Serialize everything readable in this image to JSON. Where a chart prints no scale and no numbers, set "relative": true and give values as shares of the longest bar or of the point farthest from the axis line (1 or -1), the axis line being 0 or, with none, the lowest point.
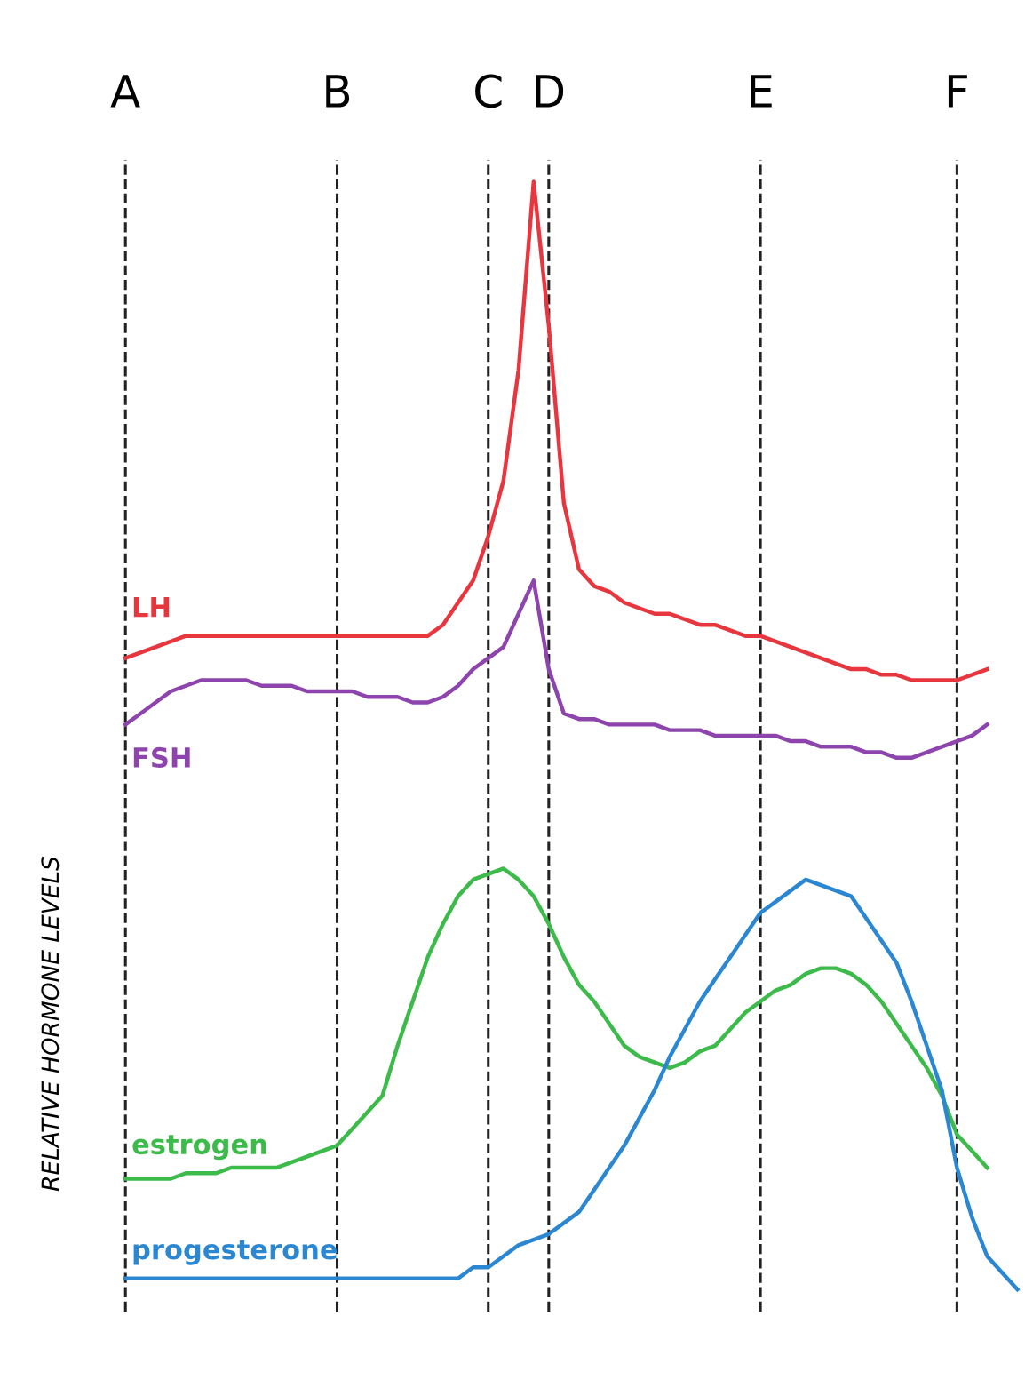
{
  "chart_data": {
    "type": "line",
    "relative": true,
    "ylabel": "RELATIVE HORMONE LEVELS",
    "tick_labels": "x",
    "grid": "x",
    "legend": false,
    "line_style": "solid",
    "marker": "none",
    "categories": [
      "A",
      null,
      null,
      null,
      null,
      null,
      null,
      null,
      null,
      null,
      null,
      null,
      null,
      null,
      "B",
      null,
      null,
      null,
      null,
      null,
      null,
      null,
      null,
      null,
      "C",
      null,
      null,
      null,
      "D",
      null,
      null,
      null,
      null,
      null,
      null,
      null,
      null,
      null,
      null,
      null,
      null,
      null,
      "E",
      null,
      null,
      null,
      null,
      null,
      null,
      null,
      null,
      null,
      null,
      null,
      null,
      "F",
      null,
      null,
      null,
      null
    ],
    "series": [
      {
        "name": "LH",
        "color": "#e8363f",
        "values": [
          0.57,
          0.575,
          0.58,
          0.585,
          0.59,
          0.59,
          0.59,
          0.59,
          0.59,
          0.59,
          0.59,
          0.59,
          0.59,
          0.59,
          0.59,
          0.59,
          0.59,
          0.59,
          0.59,
          0.59,
          0.59,
          0.6,
          0.62,
          0.64,
          0.68,
          0.73,
          0.83,
          1.0,
          0.87,
          0.71,
          0.65,
          0.635,
          0.63,
          0.62,
          0.615,
          0.61,
          0.61,
          0.605,
          0.6,
          0.6,
          0.595,
          0.59,
          0.59,
          0.585,
          0.58,
          0.575,
          0.57,
          0.565,
          0.56,
          0.56,
          0.555,
          0.555,
          0.55,
          0.55,
          0.55,
          0.55,
          0.555,
          0.56,
          null,
          null
        ]
      },
      {
        "name": "FSH",
        "color": "#8e44ad",
        "values": [
          0.51,
          0.52,
          0.53,
          0.54,
          0.545,
          0.55,
          0.55,
          0.55,
          0.55,
          0.545,
          0.545,
          0.545,
          0.54,
          0.54,
          0.54,
          0.54,
          0.535,
          0.535,
          0.535,
          0.53,
          0.53,
          0.535,
          0.545,
          0.56,
          0.57,
          0.58,
          0.61,
          0.64,
          0.56,
          0.52,
          0.515,
          0.515,
          0.51,
          0.51,
          0.51,
          0.51,
          0.505,
          0.505,
          0.505,
          0.5,
          0.5,
          0.5,
          0.5,
          0.5,
          0.495,
          0.495,
          0.49,
          0.49,
          0.49,
          0.485,
          0.485,
          0.48,
          0.48,
          0.485,
          0.49,
          0.495,
          0.5,
          0.51,
          null,
          null
        ]
      },
      {
        "name": "estrogen",
        "color": "#3cba4a",
        "values": [
          0.1,
          0.1,
          0.1,
          0.1,
          0.105,
          0.105,
          0.105,
          0.11,
          0.11,
          0.11,
          0.11,
          0.115,
          0.12,
          0.125,
          0.13,
          0.145,
          0.16,
          0.175,
          0.22,
          0.26,
          0.3,
          0.33,
          0.355,
          0.37,
          0.375,
          0.38,
          0.37,
          0.355,
          0.33,
          0.3,
          0.275,
          0.26,
          0.24,
          0.22,
          0.21,
          0.205,
          0.2,
          0.205,
          0.215,
          0.22,
          0.235,
          0.25,
          0.26,
          0.27,
          0.275,
          0.285,
          0.29,
          0.29,
          0.285,
          0.275,
          0.26,
          0.24,
          0.22,
          0.2,
          0.175,
          0.14,
          0.125,
          0.11,
          null,
          null
        ]
      },
      {
        "name": "progesterone",
        "color": "#2b87d1",
        "values": [
          0.01,
          0.01,
          0.01,
          0.01,
          0.01,
          0.01,
          0.01,
          0.01,
          0.01,
          0.01,
          0.01,
          0.01,
          0.01,
          0.01,
          0.01,
          0.01,
          0.01,
          0.01,
          0.01,
          0.01,
          0.01,
          0.01,
          0.01,
          0.02,
          0.02,
          0.03,
          0.04,
          0.045,
          0.05,
          0.06,
          0.07,
          0.09,
          0.11,
          0.13,
          0.155,
          0.18,
          0.21,
          0.235,
          0.26,
          0.28,
          0.3,
          0.32,
          0.34,
          0.35,
          0.36,
          0.37,
          0.365,
          0.36,
          0.355,
          0.335,
          0.315,
          0.295,
          0.26,
          0.22,
          0.18,
          0.11,
          0.065,
          0.03,
          0.015,
          0
        ]
      }
    ]
  }
}
